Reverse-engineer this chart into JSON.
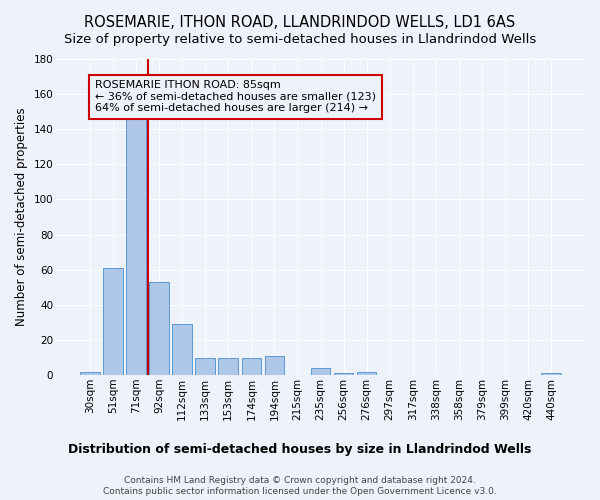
{
  "title": "ROSEMARIE, ITHON ROAD, LLANDRINDOD WELLS, LD1 6AS",
  "subtitle": "Size of property relative to semi-detached houses in Llandrindod Wells",
  "xlabel": "Distribution of semi-detached houses by size in Llandrindod Wells",
  "ylabel": "Number of semi-detached properties",
  "footnote1": "Contains HM Land Registry data © Crown copyright and database right 2024.",
  "footnote2": "Contains public sector information licensed under the Open Government Licence v3.0.",
  "bar_labels": [
    "30sqm",
    "51sqm",
    "71sqm",
    "92sqm",
    "112sqm",
    "133sqm",
    "153sqm",
    "174sqm",
    "194sqm",
    "215sqm",
    "235sqm",
    "256sqm",
    "276sqm",
    "297sqm",
    "317sqm",
    "338sqm",
    "358sqm",
    "379sqm",
    "399sqm",
    "420sqm",
    "440sqm"
  ],
  "bar_values": [
    2,
    61,
    146,
    53,
    29,
    10,
    10,
    10,
    11,
    0,
    4,
    1,
    2,
    0,
    0,
    0,
    0,
    0,
    0,
    0,
    1
  ],
  "bar_color": "#aec6e8",
  "bar_edge_color": "#5b9bd5",
  "vline_color": "#cc0000",
  "annotation_line1": "ROSEMARIE ITHON ROAD: 85sqm",
  "annotation_line2": "← 36% of semi-detached houses are smaller (123)",
  "annotation_line3": "64% of semi-detached houses are larger (214) →",
  "annotation_box_color": "#cc0000",
  "ylim": [
    0,
    180
  ],
  "yticks": [
    0,
    20,
    40,
    60,
    80,
    100,
    120,
    140,
    160,
    180
  ],
  "background_color": "#eef2fb",
  "grid_color": "#ffffff",
  "title_fontsize": 10.5,
  "subtitle_fontsize": 9.5,
  "xlabel_fontsize": 9,
  "ylabel_fontsize": 8.5,
  "tick_fontsize": 7.5,
  "annotation_fontsize": 8,
  "footnote_fontsize": 6.5
}
